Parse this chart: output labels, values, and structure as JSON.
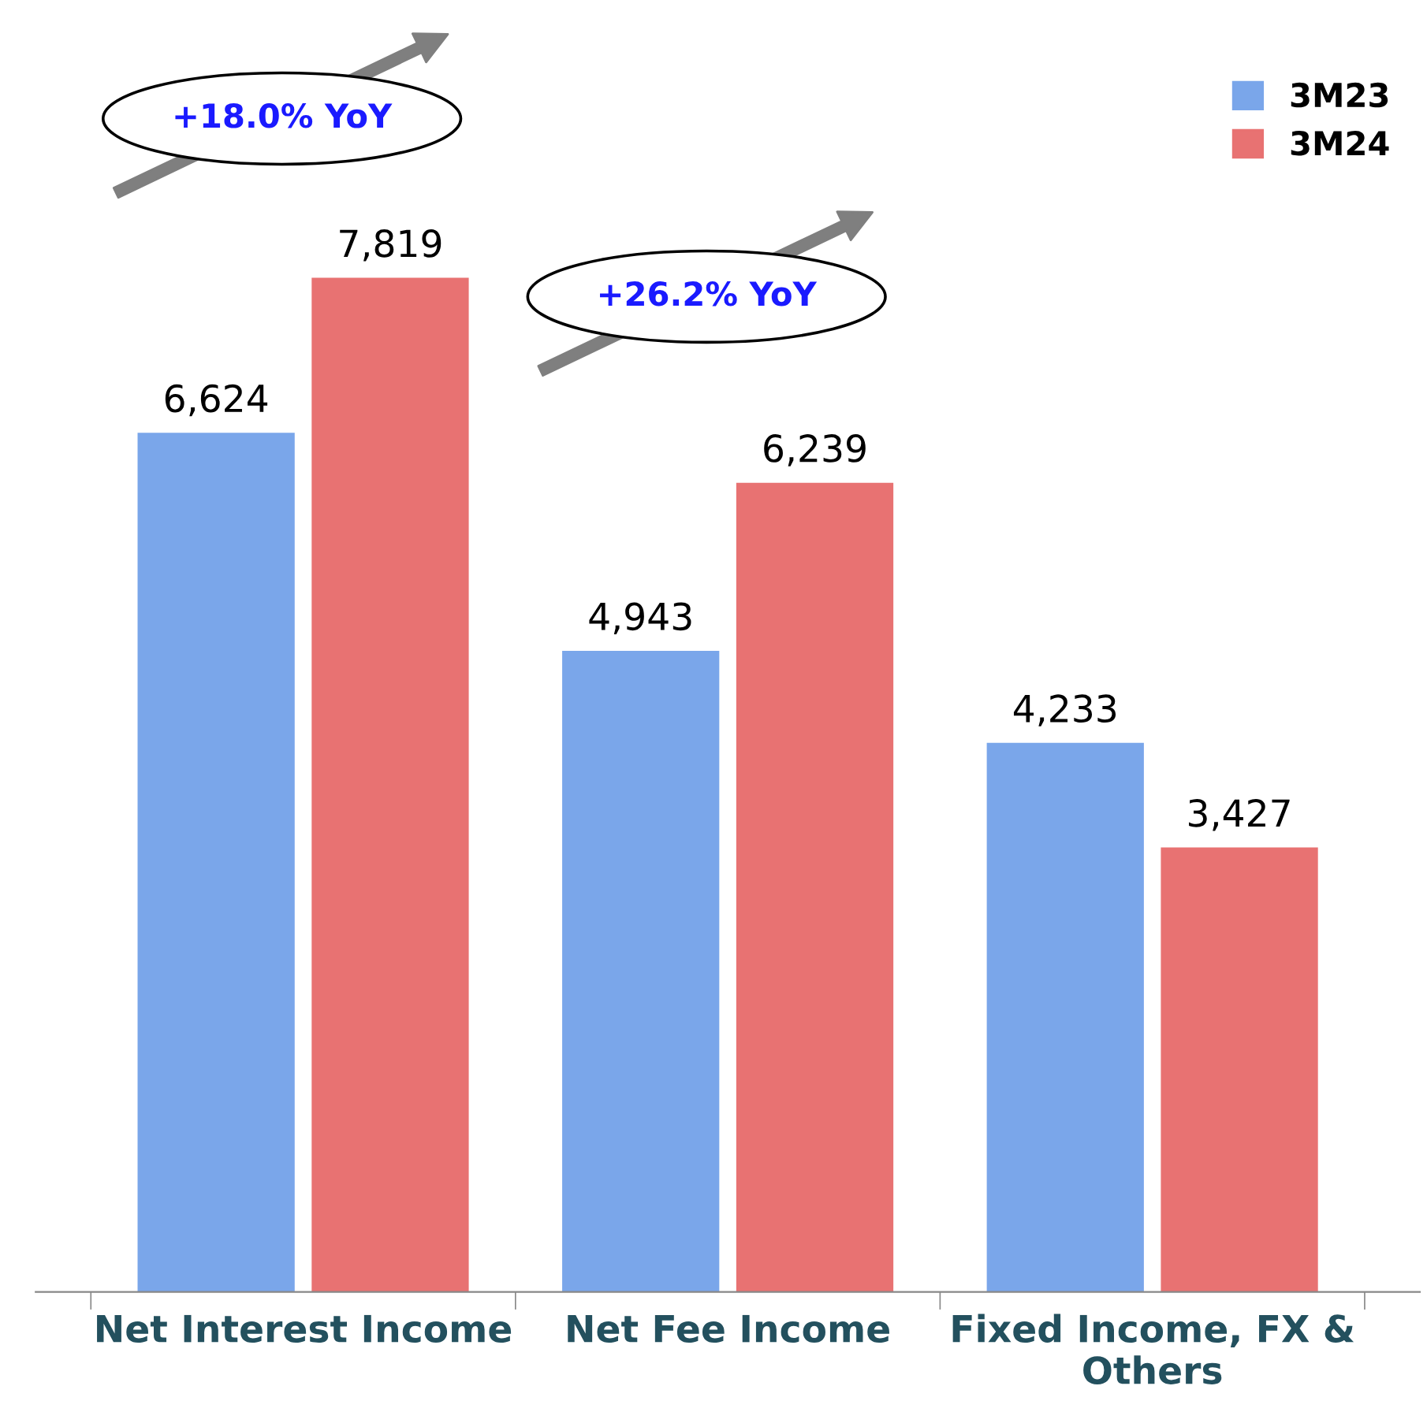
{
  "chart_data": {
    "type": "bar",
    "categories": [
      "Net Interest Income",
      "Net Fee Income",
      "Fixed Income, FX &\nOthers"
    ],
    "series": [
      {
        "name": "3M23",
        "color": "#7aa6ea",
        "values": [
          6624,
          4943,
          4233
        ],
        "value_labels": [
          "6,624",
          "4,943",
          "4,233"
        ]
      },
      {
        "name": "3M24",
        "color": "#e87272",
        "values": [
          7819,
          6239,
          3427
        ],
        "value_labels": [
          "7,819",
          "6,239",
          "3,427"
        ]
      }
    ],
    "legend": "top right",
    "grid": false,
    "annotations": [
      "+18.0% YoY",
      "+26.2% YoY"
    ]
  }
}
